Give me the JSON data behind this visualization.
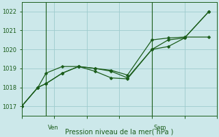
{
  "xlabel": "Pression niveau de la mer( hPa )",
  "background_color": "#cce8ea",
  "plot_bg_color": "#cce8ea",
  "grid_color": "#9dcbcd",
  "line_color": "#1a5c1a",
  "ylim": [
    1016.5,
    1022.5
  ],
  "y_ticks": [
    1017,
    1018,
    1019,
    1020,
    1021,
    1022
  ],
  "xlim": [
    0,
    12
  ],
  "x_ven": 1.5,
  "x_sam": 8.0,
  "marker_size": 2.5,
  "lw": 0.9,
  "series1_x": [
    0,
    1,
    1.5,
    2.5,
    3.5,
    4.5,
    5.5,
    6.5,
    8.0,
    9.0,
    10.0,
    11.5
  ],
  "series1_y": [
    1017.0,
    1018.0,
    1018.2,
    1018.75,
    1019.1,
    1019.0,
    1018.85,
    1018.5,
    1020.0,
    1020.5,
    1020.6,
    1022.0
  ],
  "series2_x": [
    0,
    1,
    1.5,
    2.5,
    3.5,
    4.5,
    5.5,
    6.5,
    8.0,
    9.0,
    10.0,
    11.5
  ],
  "series2_y": [
    1017.0,
    1018.0,
    1018.2,
    1018.75,
    1019.1,
    1018.85,
    1018.5,
    1018.45,
    1020.0,
    1020.15,
    1020.6,
    1022.0
  ],
  "series3_x": [
    0,
    1,
    1.5,
    2.5,
    3.5,
    4.5,
    5.5,
    6.5,
    8.0,
    9.0,
    10.0,
    11.5
  ],
  "series3_y": [
    1017.0,
    1018.0,
    1018.75,
    1019.1,
    1019.1,
    1019.0,
    1018.9,
    1018.65,
    1020.5,
    1020.6,
    1020.65,
    1020.65
  ],
  "xlabel_fontsize": 7,
  "tick_fontsize": 6
}
